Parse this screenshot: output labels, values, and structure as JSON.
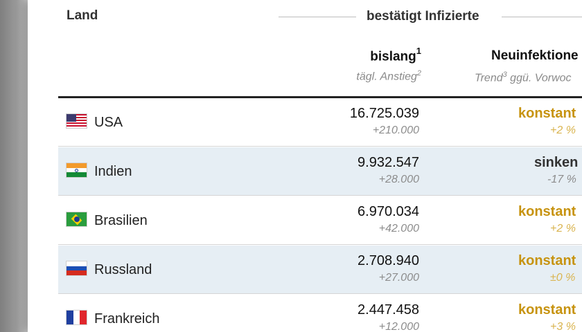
{
  "header": {
    "land": "Land",
    "group_title": "bestätigt Infizierte",
    "col_total": "bislang",
    "col_total_sup": "1",
    "col_total_sub": "tägl. Anstieg",
    "col_total_sub_sup": "2",
    "col_new": "Neuinfektione",
    "col_new_sub": "Trend",
    "col_new_sub_sup": "3",
    "col_new_sub_rest": " ggü. Vorwoc"
  },
  "rows": [
    {
      "flag": "usa-flag-icon",
      "country": "USA",
      "total": "16.725.039",
      "delta": "+210.000",
      "trend": "konstant",
      "trend_pct": "+2 %",
      "trend_color": "#c7930f"
    },
    {
      "flag": "india-flag-icon",
      "country": "Indien",
      "total": "9.932.547",
      "delta": "+28.000",
      "trend": "sinken",
      "trend_pct": "-17 %",
      "trend_color": "#333333"
    },
    {
      "flag": "brazil-flag-icon",
      "country": "Brasilien",
      "total": "6.970.034",
      "delta": "+42.000",
      "trend": "konstant",
      "trend_pct": "+2 %",
      "trend_color": "#c7930f"
    },
    {
      "flag": "russia-flag-icon",
      "country": "Russland",
      "total": "2.708.940",
      "delta": "+27.000",
      "trend": "konstant",
      "trend_pct": "±0 %",
      "trend_color": "#c7930f"
    },
    {
      "flag": "france-flag-icon",
      "country": "Frankreich",
      "total": "2.447.458",
      "delta": "+12.000",
      "trend": "konstant",
      "trend_pct": "+3 %",
      "trend_color": "#c7930f"
    }
  ]
}
